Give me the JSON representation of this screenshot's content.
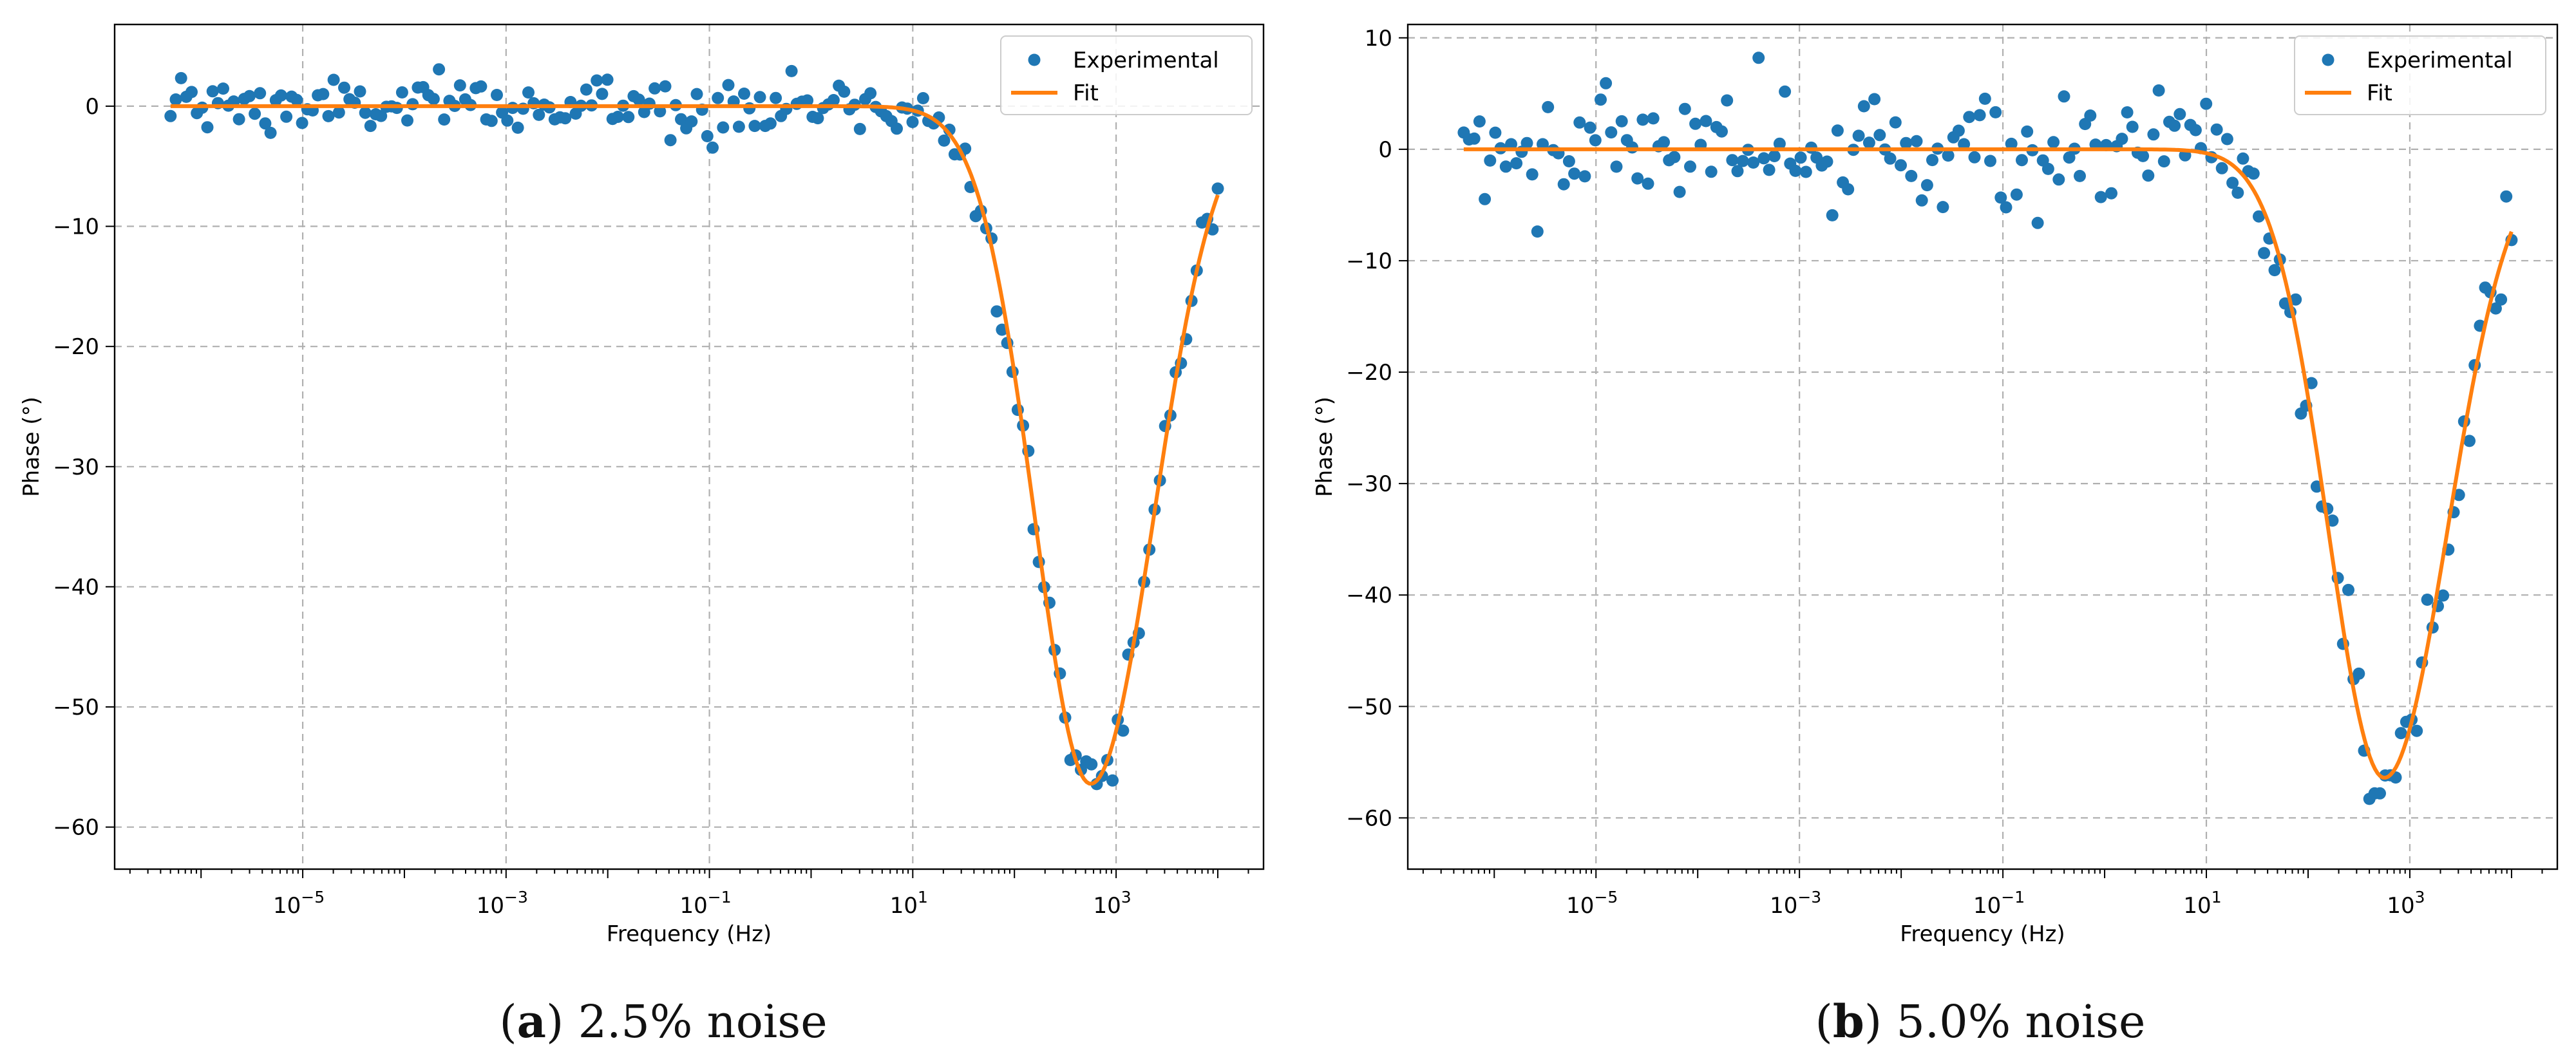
{
  "chart_data": [
    {
      "type": "scatter",
      "panel_label": "a",
      "caption": "2.5% noise",
      "xlabel": "Frequency (Hz)",
      "ylabel": "Phase (°)",
      "xscale": "log",
      "xlim_exp": [
        -6.85,
        4.45
      ],
      "ylim": [
        -63.5,
        6.8
      ],
      "xtick_labels": [
        {
          "exp": -5,
          "base": "10",
          "sup": "−5"
        },
        {
          "exp": -3,
          "base": "10",
          "sup": "−3"
        },
        {
          "exp": -1,
          "base": "10",
          "sup": "−1"
        },
        {
          "exp": 1,
          "base": "10",
          "sup": "1"
        },
        {
          "exp": 3,
          "base": "10",
          "sup": "3"
        }
      ],
      "ytick_values": [
        0,
        -10,
        -20,
        -30,
        -40,
        -50,
        -60
      ],
      "ytick_labels": [
        "0",
        "−10",
        "−20",
        "−30",
        "−40",
        "−50",
        "−60"
      ],
      "grid": true,
      "legend": {
        "position": "top-right",
        "entries": [
          "Experimental",
          "Fit"
        ]
      },
      "colors": {
        "experimental": "#1f77b4",
        "fit": "#ff7f0e"
      },
      "noise_level": 0.025,
      "fit_params": {
        "peak_min": -56.4,
        "peak_log_freq": 2.75,
        "sigma_left": 0.55,
        "sigma_right": 0.62
      },
      "series": [
        {
          "name": "Experimental",
          "x_log_range": [
            -6.3,
            4.0
          ],
          "points": 200
        },
        {
          "name": "Fit",
          "x_log_range": [
            -6.3,
            4.0
          ],
          "points": 400
        }
      ]
    },
    {
      "type": "scatter",
      "panel_label": "b",
      "caption": "5.0% noise",
      "xlabel": "Frequency (Hz)",
      "ylabel": "Phase (°)",
      "xscale": "log",
      "xlim_exp": [
        -6.85,
        4.45
      ],
      "ylim": [
        -64.6,
        11.2
      ],
      "xtick_labels": [
        {
          "exp": -5,
          "base": "10",
          "sup": "−5"
        },
        {
          "exp": -3,
          "base": "10",
          "sup": "−3"
        },
        {
          "exp": -1,
          "base": "10",
          "sup": "−1"
        },
        {
          "exp": 1,
          "base": "10",
          "sup": "1"
        },
        {
          "exp": 3,
          "base": "10",
          "sup": "3"
        }
      ],
      "ytick_values": [
        10,
        0,
        -10,
        -20,
        -30,
        -40,
        -50,
        -60
      ],
      "ytick_labels": [
        "10",
        "0",
        "−10",
        "−20",
        "−30",
        "−40",
        "−50",
        "−60"
      ],
      "grid": true,
      "legend": {
        "position": "top-right",
        "entries": [
          "Experimental",
          "Fit"
        ]
      },
      "colors": {
        "experimental": "#1f77b4",
        "fit": "#ff7f0e"
      },
      "noise_level": 0.05,
      "fit_params": {
        "peak_min": -56.4,
        "peak_log_freq": 2.75,
        "sigma_left": 0.55,
        "sigma_right": 0.62
      },
      "series": [
        {
          "name": "Experimental",
          "x_log_range": [
            -6.3,
            4.0
          ],
          "points": 200
        },
        {
          "name": "Fit",
          "x_log_range": [
            -6.3,
            4.0
          ],
          "points": 400
        }
      ]
    }
  ]
}
